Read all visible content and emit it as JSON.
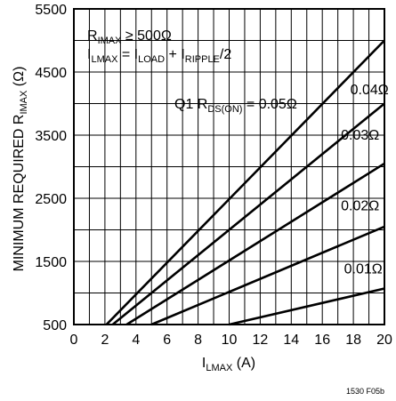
{
  "chart_data": {
    "type": "line",
    "xlabel": {
      "main": "I",
      "sub": "LMAX",
      "tail": " (A)"
    },
    "ylabel": {
      "main": "MINIMUM REQUIRED R",
      "sub": "IMAX",
      "tail": " (Ω)"
    },
    "xlim": [
      0,
      20
    ],
    "ylim": [
      500,
      5500
    ],
    "x_ticks": [
      "0",
      "2",
      "4",
      "6",
      "8",
      "10",
      "12",
      "14",
      "16",
      "18",
      "20"
    ],
    "y_ticks": [
      "500",
      "1500",
      "2500",
      "3500",
      "4500",
      "5500"
    ],
    "grid": true,
    "annotations": {
      "cond1": {
        "a": "R",
        "a_sub": "IMAX",
        "b": " ≥ 500Ω"
      },
      "cond2": {
        "a": "I",
        "a_sub": "LMAX",
        "b": " = I",
        "b_sub": "LOAD",
        "c": " + I",
        "c_sub": "RIPPLE",
        "d": "/2"
      },
      "q1": {
        "a": "Q1 R",
        "a_sub": "DS(ON)",
        "b": " = 0.05Ω"
      }
    },
    "figure_id": "1530 F05b",
    "series": [
      {
        "name": "0.05Ω",
        "x": [
          2.1,
          20
        ],
        "y": [
          500,
          5000
        ]
      },
      {
        "name": "0.04Ω",
        "x": [
          2.5,
          20
        ],
        "y": [
          500,
          4000
        ]
      },
      {
        "name": "0.03Ω",
        "x": [
          3.4,
          20
        ],
        "y": [
          500,
          3050
        ]
      },
      {
        "name": "0.02Ω",
        "x": [
          5.0,
          20
        ],
        "y": [
          500,
          2050
        ]
      },
      {
        "name": "0.01Ω",
        "x": [
          10.0,
          20
        ],
        "y": [
          500,
          1070
        ]
      }
    ]
  }
}
